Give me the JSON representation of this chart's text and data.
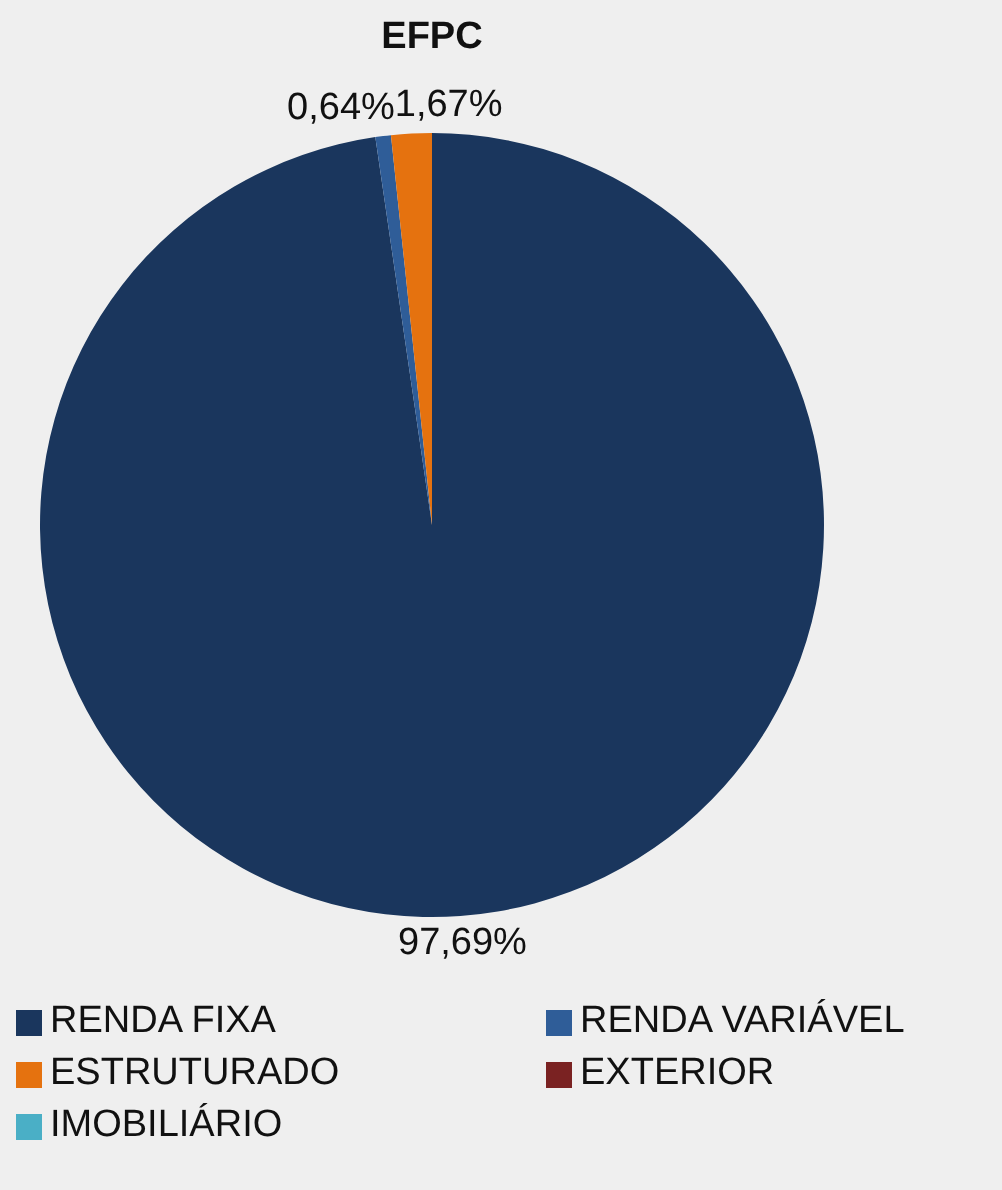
{
  "chart_data": {
    "type": "pie",
    "title": "EFPC",
    "categories": [
      "RENDA FIXA",
      "RENDA VARIÁVEL",
      "ESTRUTURADO",
      "EXTERIOR",
      "IMOBILIÁRIO"
    ],
    "values": [
      97.69,
      0.64,
      1.67,
      0,
      0
    ],
    "value_labels": [
      "97,69%",
      "0,64%",
      "1,67%",
      null,
      null
    ],
    "colors": [
      "#1a365d",
      "#2f5d98",
      "#e5720f",
      "#7a2222",
      "#4aafc6"
    ],
    "legend": "bottom"
  }
}
